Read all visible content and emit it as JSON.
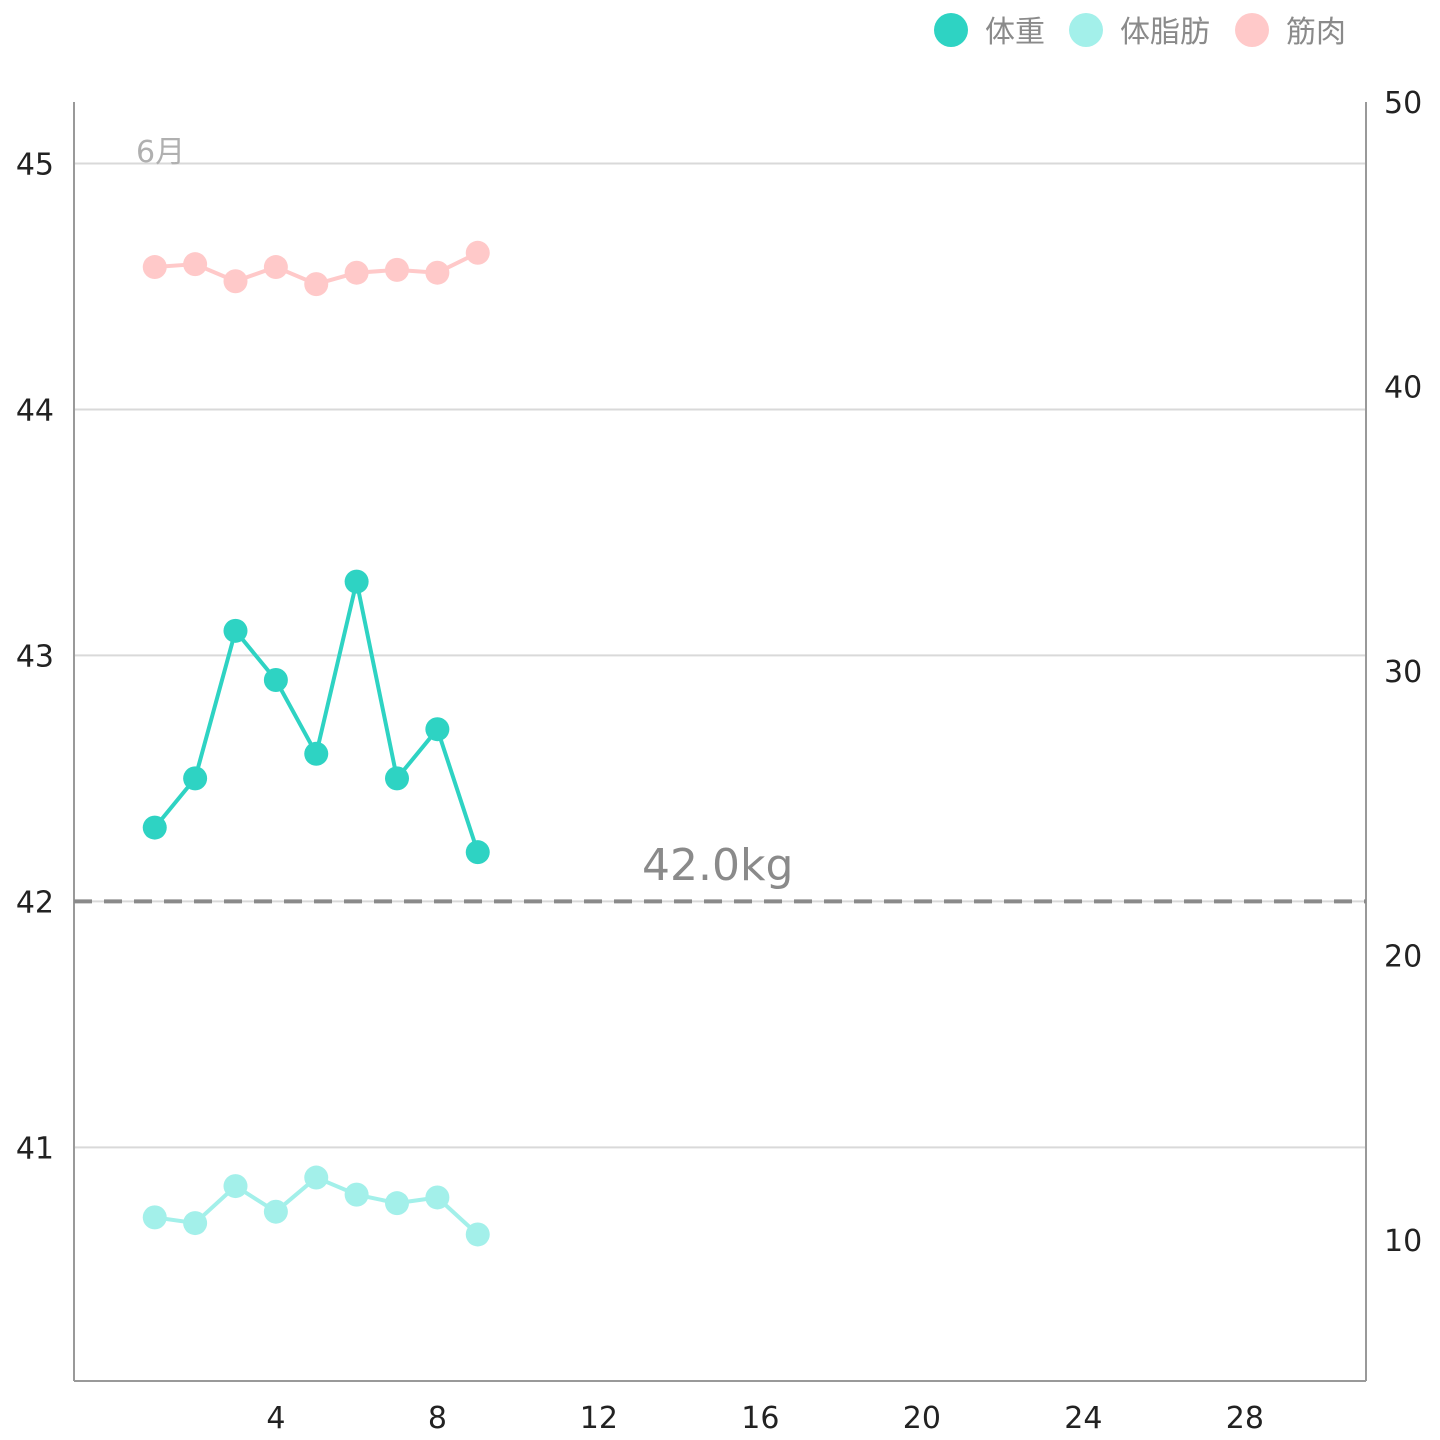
{
  "legend": [
    {
      "label": "体重",
      "color": "#2ed3c3"
    },
    {
      "label": "体脂肪",
      "color": "#a3f0ea"
    },
    {
      "label": "筋肉",
      "color": "#ffc9c9"
    }
  ],
  "month_label": "6月",
  "target": {
    "value": 42.0,
    "label": "42.0kg",
    "color": "#8a8a8a"
  },
  "colors": {
    "grid": "#d9d9d9",
    "axis": "#999999"
  },
  "chart_data": {
    "type": "line",
    "xlim": [
      -1,
      31
    ],
    "x_ticks": [
      4,
      8,
      12,
      16,
      20,
      24,
      28
    ],
    "y_left": {
      "ticks": [
        41,
        42,
        43,
        44,
        45
      ],
      "lim": [
        40.05,
        45.25
      ]
    },
    "y_right": {
      "ticks": [
        10,
        20,
        30,
        40,
        50
      ],
      "lim": [
        5.05,
        50.0
      ]
    },
    "grid": true,
    "legend_position": "top-right",
    "series": [
      {
        "name": "体重",
        "axis": "left",
        "color": "#2ed3c3",
        "x": [
          1,
          2,
          3,
          4,
          5,
          6,
          7,
          8,
          9
        ],
        "values": [
          42.3,
          42.5,
          43.1,
          42.9,
          42.6,
          43.3,
          42.5,
          42.7,
          42.2
        ]
      },
      {
        "name": "体脂肪",
        "axis": "right",
        "color": "#a3f0ea",
        "x": [
          1,
          2,
          3,
          4,
          5,
          6,
          7,
          8,
          9
        ],
        "values": [
          10.8,
          10.6,
          11.9,
          11.0,
          12.2,
          11.6,
          11.3,
          11.5,
          10.2
        ]
      },
      {
        "name": "筋肉",
        "axis": "right",
        "color": "#ffc9c9",
        "x": [
          1,
          2,
          3,
          4,
          5,
          6,
          7,
          8,
          9
        ],
        "values": [
          44.2,
          44.3,
          43.7,
          44.2,
          43.6,
          44.0,
          44.1,
          44.0,
          44.7
        ]
      }
    ]
  }
}
